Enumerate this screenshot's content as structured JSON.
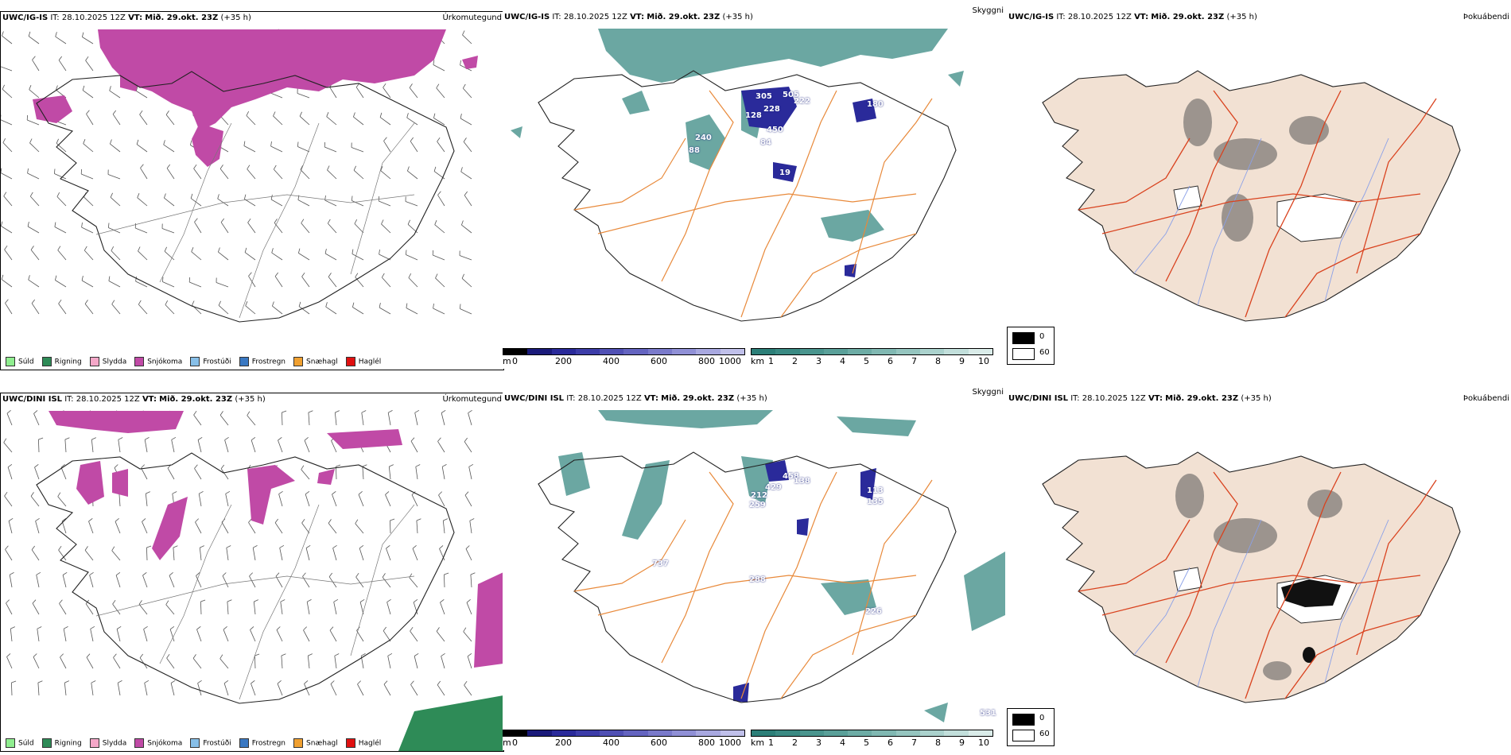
{
  "rows": [
    {
      "model": "UWC/IG-IS",
      "it_label": "IT:",
      "it_value": "28.10.2025 12Z",
      "vt_label": "VT:",
      "vt_value": "Mið. 29.okt. 23Z",
      "lead": "(+35 h)",
      "precip_title": "Úrkomutegund",
      "cloud_title": "Skyggni",
      "fog_title": "Þokuábendi",
      "cloud_numbers": [
        "305",
        "505",
        "222",
        "228",
        "128",
        "180",
        "240",
        "88",
        "450",
        "84",
        "19"
      ]
    },
    {
      "model": "UWC/DINI ISL",
      "it_label": "IT:",
      "it_value": "28.10.2025 12Z",
      "vt_label": "VT:",
      "vt_value": "Mið. 29.okt. 23Z",
      "lead": "(+35 h)",
      "precip_title": "Úrkomutegund",
      "cloud_title": "Skyggni",
      "fog_title": "Þokuábendi",
      "cloud_numbers": [
        "429",
        "458",
        "138",
        "212",
        "259",
        "113",
        "135",
        "737",
        "288",
        "226",
        "531"
      ]
    }
  ],
  "precip_legend": [
    {
      "label": "Súld",
      "color": "#90ee90"
    },
    {
      "label": "Rigning",
      "color": "#2e8b57"
    },
    {
      "label": "Slydda",
      "color": "#f4a7c8"
    },
    {
      "label": "Snjókoma",
      "color": "#c04aa6"
    },
    {
      "label": "Frostúði",
      "color": "#87bfe8"
    },
    {
      "label": "Frostregn",
      "color": "#3a78c2"
    },
    {
      "label": "Snæhagl",
      "color": "#f0a030"
    },
    {
      "label": "Haglél",
      "color": "#e01010"
    }
  ],
  "ceiling_bar": {
    "unit": "m",
    "ticks": [
      "0",
      "200",
      "400",
      "600",
      "800",
      "1000"
    ],
    "colors": [
      "#000000",
      "#1a1a7a",
      "#2a2a9a",
      "#3c3ca8",
      "#5050b4",
      "#6464c0",
      "#7a7acb",
      "#9090d6",
      "#a8a8e0",
      "#c0c0ea"
    ]
  },
  "visibility_bar": {
    "unit": "km",
    "ticks": [
      "1",
      "2",
      "3",
      "4",
      "5",
      "6",
      "7",
      "8",
      "9",
      "10"
    ],
    "colors": [
      "#2c7f78",
      "#3a8a83",
      "#4a958e",
      "#5aa099",
      "#6daca5",
      "#80b8b2",
      "#95c5bf",
      "#abd2cd",
      "#c2dfdb",
      "#daece9"
    ]
  },
  "fog_legend": [
    {
      "label": "0",
      "color": "#000000"
    },
    {
      "label": "60",
      "color": "#ffffff"
    }
  ],
  "colors": {
    "snow": "#c04aa6",
    "rain": "#2e8b57",
    "low_cloud": "#3a8a83",
    "ceiling": "#2a2a9a",
    "roads_orange": "#e8893a",
    "roads_red": "#d9421e",
    "land_beige": "#f2e1d3",
    "rivers": "#8aa0e8"
  }
}
